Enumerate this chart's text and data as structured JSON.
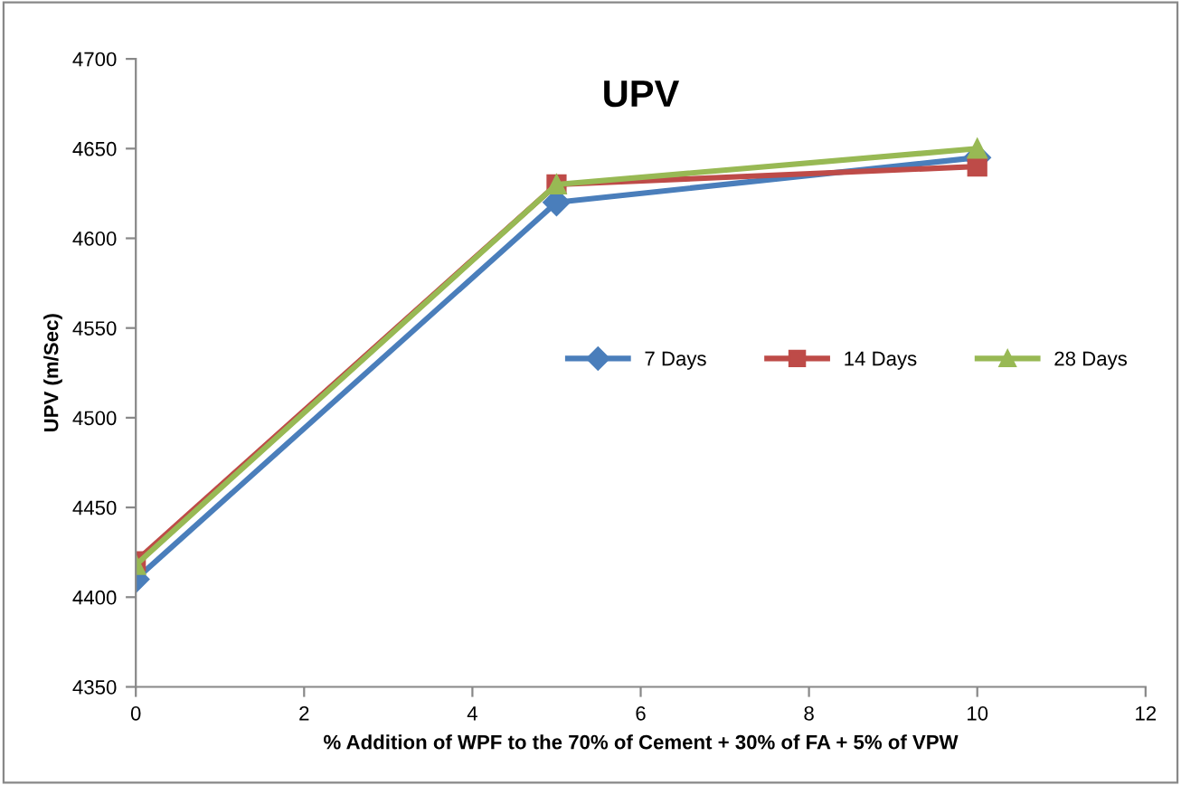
{
  "chart_data": {
    "type": "line",
    "title": "UPV",
    "xlabel": "% Addition of WPF to the 70% of Cement + 30% of FA + 5% of VPW",
    "ylabel": "UPV (m/Sec)",
    "x": [
      0,
      5,
      10
    ],
    "series": [
      {
        "name": "7 Days",
        "color": "#4a7ebb",
        "marker": "diamond",
        "values": [
          4410,
          4620,
          4645
        ]
      },
      {
        "name": "14 Days",
        "color": "#be4b48",
        "marker": "square",
        "values": [
          4420,
          4630,
          4640
        ]
      },
      {
        "name": "28 Days",
        "color": "#98b954",
        "marker": "triangle",
        "values": [
          4418,
          4630,
          4650
        ]
      }
    ],
    "xlim": [
      0,
      12
    ],
    "xticks": [
      0,
      2,
      4,
      6,
      8,
      10,
      12
    ],
    "ylim": [
      4350,
      4700
    ],
    "yticks": [
      4350,
      4400,
      4450,
      4500,
      4550,
      4600,
      4650,
      4700
    ],
    "grid": false,
    "legend": "right"
  }
}
